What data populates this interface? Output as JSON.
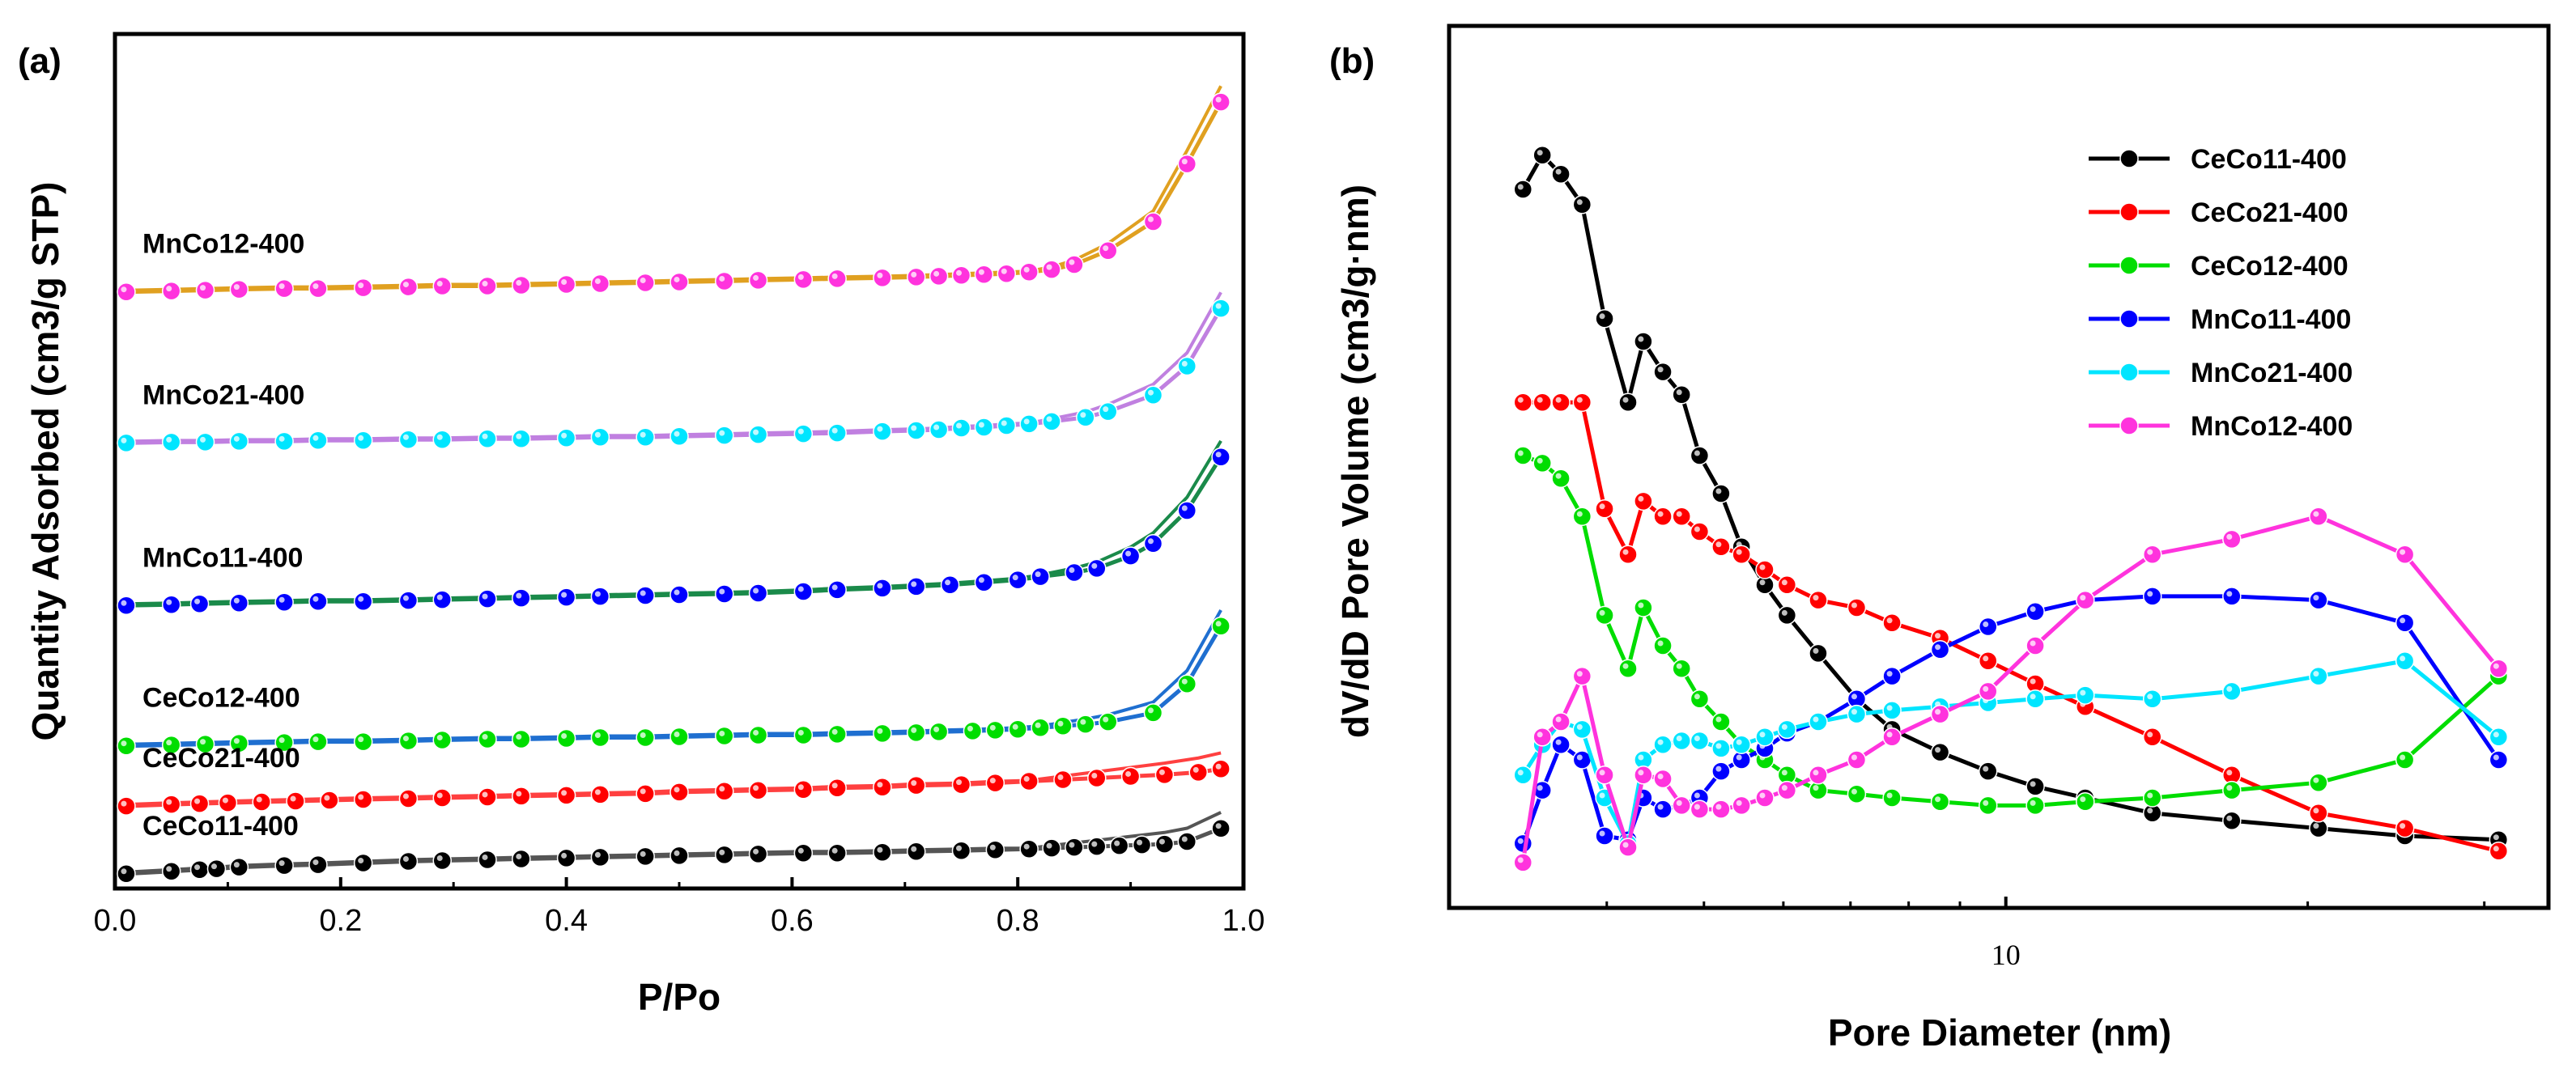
{
  "chart_data": [
    {
      "panel": "(a)",
      "type": "line",
      "title": "",
      "xlabel": "P/Po",
      "ylabel": "Quantity Adsorbed (cm3/g STP)",
      "xlim": [
        0,
        1.0
      ],
      "ylim": [
        0,
        100
      ],
      "xticks": [
        "0.0",
        "0.2",
        "0.4",
        "0.6",
        "0.8",
        "1.0"
      ],
      "xtick_values": [
        0,
        0.2,
        0.4,
        0.6,
        0.8,
        1.0
      ],
      "grid": false,
      "note": "Stacked isotherms; y is relative offset on an unlabeled axis",
      "series": [
        {
          "name": "CeCo11-400",
          "marker_color": "#000000",
          "line_color": "#555555",
          "x": [
            0.01,
            0.05,
            0.075,
            0.09,
            0.11,
            0.15,
            0.18,
            0.22,
            0.26,
            0.29,
            0.33,
            0.36,
            0.4,
            0.43,
            0.47,
            0.5,
            0.54,
            0.57,
            0.61,
            0.64,
            0.68,
            0.71,
            0.75,
            0.78,
            0.81,
            0.83,
            0.85,
            0.87,
            0.89,
            0.91,
            0.93,
            0.95,
            0.98
          ],
          "y": [
            1.0,
            1.3,
            1.5,
            1.6,
            1.8,
            2.0,
            2.1,
            2.3,
            2.5,
            2.6,
            2.7,
            2.8,
            2.9,
            3.0,
            3.1,
            3.2,
            3.3,
            3.4,
            3.5,
            3.5,
            3.6,
            3.7,
            3.8,
            3.9,
            4.0,
            4.1,
            4.2,
            4.3,
            4.4,
            4.5,
            4.6,
            4.9,
            6.5
          ]
        },
        {
          "name": "CeCo21-400",
          "marker_color": "#ff0000",
          "line_color": "#ff4040",
          "x": [
            0.01,
            0.05,
            0.075,
            0.1,
            0.13,
            0.16,
            0.19,
            0.22,
            0.26,
            0.29,
            0.33,
            0.36,
            0.4,
            0.43,
            0.47,
            0.5,
            0.54,
            0.57,
            0.61,
            0.64,
            0.68,
            0.71,
            0.75,
            0.78,
            0.81,
            0.84,
            0.87,
            0.9,
            0.93,
            0.96,
            0.98
          ],
          "y": [
            9.2,
            9.4,
            9.5,
            9.6,
            9.7,
            9.8,
            9.9,
            10.0,
            10.1,
            10.2,
            10.3,
            10.4,
            10.5,
            10.6,
            10.7,
            10.9,
            11.0,
            11.1,
            11.2,
            11.4,
            11.5,
            11.7,
            11.8,
            12.0,
            12.2,
            12.4,
            12.6,
            12.8,
            13.0,
            13.3,
            13.7
          ]
        },
        {
          "name": "CeCo12-400",
          "marker_color": "#00dd00",
          "line_color": "#1f6fd0",
          "x": [
            0.01,
            0.05,
            0.08,
            0.11,
            0.15,
            0.18,
            0.22,
            0.26,
            0.29,
            0.33,
            0.36,
            0.4,
            0.43,
            0.47,
            0.5,
            0.54,
            0.57,
            0.61,
            0.64,
            0.68,
            0.71,
            0.73,
            0.76,
            0.78,
            0.8,
            0.82,
            0.84,
            0.86,
            0.88,
            0.92,
            0.95,
            0.98
          ],
          "y": [
            16.5,
            16.6,
            16.7,
            16.8,
            16.9,
            17.0,
            17.0,
            17.1,
            17.2,
            17.3,
            17.3,
            17.4,
            17.5,
            17.5,
            17.6,
            17.7,
            17.8,
            17.8,
            17.9,
            18.0,
            18.1,
            18.2,
            18.3,
            18.4,
            18.5,
            18.7,
            18.9,
            19.1,
            19.4,
            20.5,
            24.0,
            31.0
          ]
        },
        {
          "name": "MnCo11-400",
          "marker_color": "#0000ff",
          "line_color": "#1a8a4a",
          "x": [
            0.01,
            0.05,
            0.075,
            0.11,
            0.15,
            0.18,
            0.22,
            0.26,
            0.29,
            0.33,
            0.36,
            0.4,
            0.43,
            0.47,
            0.5,
            0.54,
            0.57,
            0.61,
            0.64,
            0.68,
            0.71,
            0.74,
            0.77,
            0.8,
            0.82,
            0.85,
            0.87,
            0.9,
            0.92,
            0.95,
            0.98
          ],
          "y": [
            33.5,
            33.6,
            33.7,
            33.8,
            33.9,
            34.0,
            34.0,
            34.1,
            34.2,
            34.3,
            34.4,
            34.5,
            34.6,
            34.7,
            34.8,
            34.9,
            35.0,
            35.2,
            35.4,
            35.6,
            35.8,
            36.0,
            36.3,
            36.6,
            37.0,
            37.5,
            38.0,
            39.5,
            41.0,
            45.0,
            51.5
          ]
        },
        {
          "name": "MnCo21-400",
          "marker_color": "#00e5ff",
          "line_color": "#c080e0",
          "x": [
            0.01,
            0.05,
            0.08,
            0.11,
            0.15,
            0.18,
            0.22,
            0.26,
            0.29,
            0.33,
            0.36,
            0.4,
            0.43,
            0.47,
            0.5,
            0.54,
            0.57,
            0.61,
            0.64,
            0.68,
            0.71,
            0.73,
            0.75,
            0.77,
            0.79,
            0.81,
            0.83,
            0.86,
            0.88,
            0.92,
            0.95,
            0.98
          ],
          "y": [
            53.2,
            53.3,
            53.3,
            53.4,
            53.4,
            53.5,
            53.5,
            53.6,
            53.6,
            53.7,
            53.7,
            53.8,
            53.9,
            53.9,
            54.0,
            54.1,
            54.2,
            54.3,
            54.4,
            54.6,
            54.7,
            54.8,
            55.0,
            55.1,
            55.3,
            55.5,
            55.8,
            56.3,
            57.0,
            59.0,
            62.5,
            69.5
          ]
        },
        {
          "name": "MnCo12-400",
          "marker_color": "#ff33dd",
          "line_color": "#e0a020",
          "x": [
            0.01,
            0.05,
            0.08,
            0.11,
            0.15,
            0.18,
            0.22,
            0.26,
            0.29,
            0.33,
            0.36,
            0.4,
            0.43,
            0.47,
            0.5,
            0.54,
            0.57,
            0.61,
            0.64,
            0.68,
            0.71,
            0.73,
            0.75,
            0.77,
            0.79,
            0.81,
            0.83,
            0.85,
            0.88,
            0.92,
            0.95,
            0.98
          ],
          "y": [
            71.5,
            71.6,
            71.7,
            71.8,
            71.9,
            71.9,
            72.0,
            72.1,
            72.2,
            72.2,
            72.3,
            72.4,
            72.5,
            72.6,
            72.7,
            72.8,
            72.9,
            73.0,
            73.1,
            73.2,
            73.3,
            73.4,
            73.5,
            73.6,
            73.7,
            73.9,
            74.2,
            74.8,
            76.5,
            80.0,
            87.0,
            94.5
          ]
        }
      ]
    },
    {
      "panel": "(b)",
      "type": "line",
      "title": "",
      "xlabel": "Pore Diameter (nm)",
      "ylabel": "dV/dD Pore Volume (cm3/g·nm)",
      "xscale": "log",
      "xlim": [
        3.0,
        33.0
      ],
      "ylim": [
        0,
        100
      ],
      "xticks": [
        "10"
      ],
      "xtick_values": [
        10
      ],
      "grid": false,
      "legend_position": "top-right",
      "note": "Unlabeled y axis; y values are relative",
      "series": [
        {
          "name": "CeCo11-400",
          "color": "#000000",
          "x": [
            3.3,
            3.45,
            3.6,
            3.78,
            3.98,
            4.2,
            4.35,
            4.55,
            4.75,
            4.95,
            5.2,
            5.45,
            5.75,
            6.05,
            6.5,
            7.1,
            7.7,
            8.6,
            9.6,
            10.7,
            12.0,
            14.0,
            16.8,
            20.5,
            25.0,
            31.0
          ],
          "y": [
            90.0,
            94.5,
            92.0,
            88.0,
            73.0,
            62.0,
            70.0,
            66.0,
            63.0,
            55.0,
            50.0,
            43.0,
            38.0,
            34.0,
            29.0,
            23.0,
            19.0,
            16.0,
            13.5,
            11.5,
            10.0,
            8.0,
            7.0,
            6.0,
            5.0,
            4.5
          ]
        },
        {
          "name": "CeCo21-400",
          "color": "#ff0000",
          "x": [
            3.3,
            3.45,
            3.6,
            3.78,
            3.98,
            4.2,
            4.35,
            4.55,
            4.75,
            4.95,
            5.2,
            5.45,
            5.75,
            6.05,
            6.5,
            7.1,
            7.7,
            8.6,
            9.6,
            10.7,
            12.0,
            14.0,
            16.8,
            20.5,
            25.0,
            31.0
          ],
          "y": [
            62.0,
            62.0,
            62.0,
            62.0,
            48.0,
            42.0,
            49.0,
            47.0,
            47.0,
            45.0,
            43.0,
            42.0,
            40.0,
            38.0,
            36.0,
            35.0,
            33.0,
            31.0,
            28.0,
            25.0,
            22.0,
            18.0,
            13.0,
            8.0,
            6.0,
            3.0
          ]
        },
        {
          "name": "CeCo12-400",
          "color": "#00dd00",
          "x": [
            3.3,
            3.45,
            3.6,
            3.78,
            3.98,
            4.2,
            4.35,
            4.55,
            4.75,
            4.95,
            5.2,
            5.45,
            5.75,
            6.05,
            6.5,
            7.1,
            7.7,
            8.6,
            9.6,
            10.7,
            12.0,
            14.0,
            16.8,
            20.5,
            25.0,
            31.0
          ],
          "y": [
            55.0,
            54.0,
            52.0,
            47.0,
            34.0,
            27.0,
            35.0,
            30.0,
            27.0,
            23.0,
            20.0,
            17.0,
            15.0,
            13.0,
            11.0,
            10.5,
            10.0,
            9.5,
            9.0,
            9.0,
            9.5,
            10.0,
            11.0,
            12.0,
            15.0,
            26.0
          ]
        },
        {
          "name": "MnCo11-400",
          "color": "#0000ff",
          "x": [
            3.3,
            3.45,
            3.6,
            3.78,
            3.98,
            4.2,
            4.35,
            4.55,
            4.75,
            4.95,
            5.2,
            5.45,
            5.75,
            6.05,
            6.5,
            7.1,
            7.7,
            8.6,
            9.6,
            10.7,
            12.0,
            14.0,
            16.8,
            20.5,
            25.0,
            31.0
          ],
          "y": [
            4.0,
            11.0,
            17.0,
            15.0,
            5.0,
            4.5,
            10.0,
            8.5,
            9.0,
            10.0,
            13.5,
            15.0,
            16.5,
            18.5,
            20.0,
            23.0,
            26.0,
            29.5,
            32.5,
            34.5,
            36.0,
            36.5,
            36.5,
            36.0,
            33.0,
            15.0
          ]
        },
        {
          "name": "MnCo21-400",
          "color": "#00e5ff",
          "x": [
            3.3,
            3.45,
            3.6,
            3.78,
            3.98,
            4.2,
            4.35,
            4.55,
            4.75,
            4.95,
            5.2,
            5.45,
            5.75,
            6.05,
            6.5,
            7.1,
            7.7,
            8.6,
            9.6,
            10.7,
            12.0,
            14.0,
            16.8,
            20.5,
            25.0,
            31.0
          ],
          "y": [
            13.0,
            17.0,
            20.0,
            19.0,
            10.0,
            4.0,
            15.0,
            17.0,
            17.5,
            17.5,
            16.5,
            17.0,
            18.0,
            19.0,
            20.0,
            21.0,
            21.5,
            22.0,
            22.5,
            23.0,
            23.5,
            23.0,
            24.0,
            26.0,
            28.0,
            18.0
          ]
        },
        {
          "name": "MnCo12-400",
          "color": "#ff33dd",
          "x": [
            3.3,
            3.45,
            3.6,
            3.78,
            3.98,
            4.2,
            4.35,
            4.55,
            4.75,
            4.95,
            5.2,
            5.45,
            5.75,
            6.05,
            6.5,
            7.1,
            7.7,
            8.6,
            9.6,
            10.7,
            12.0,
            14.0,
            16.8,
            20.5,
            25.0,
            31.0
          ],
          "y": [
            1.5,
            18.0,
            20.0,
            26.0,
            13.0,
            3.5,
            13.0,
            12.5,
            9.0,
            8.5,
            8.5,
            9.0,
            10.0,
            11.0,
            13.0,
            15.0,
            18.0,
            21.0,
            24.0,
            30.0,
            36.0,
            42.0,
            44.0,
            47.0,
            42.0,
            27.0
          ]
        }
      ]
    }
  ]
}
